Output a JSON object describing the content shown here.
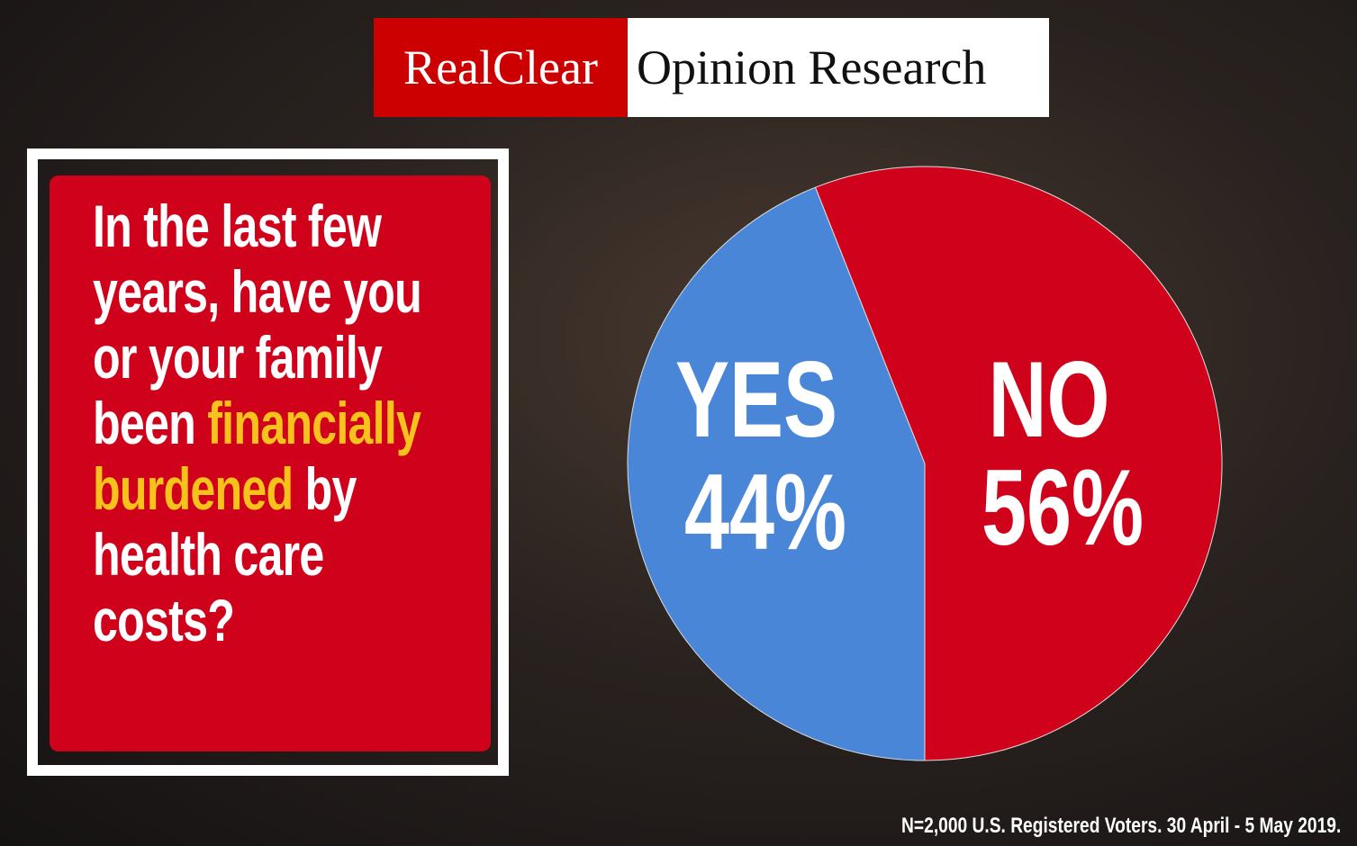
{
  "brand": {
    "left": "RealClear",
    "right": "Opinion Research"
  },
  "question_parts": [
    "In the last few years, have you or your family been",
    "financially burdened",
    "by health care costs?"
  ],
  "chart_data": {
    "type": "pie",
    "categories": [
      "YES",
      "NO"
    ],
    "values": [
      44,
      56
    ],
    "value_labels": [
      "44%",
      "56%"
    ],
    "colors": [
      "#4a86d8",
      "#d0021b"
    ]
  },
  "footnote": "N=2,000 U.S. Registered Voters. 30 April - 5 May 2019."
}
